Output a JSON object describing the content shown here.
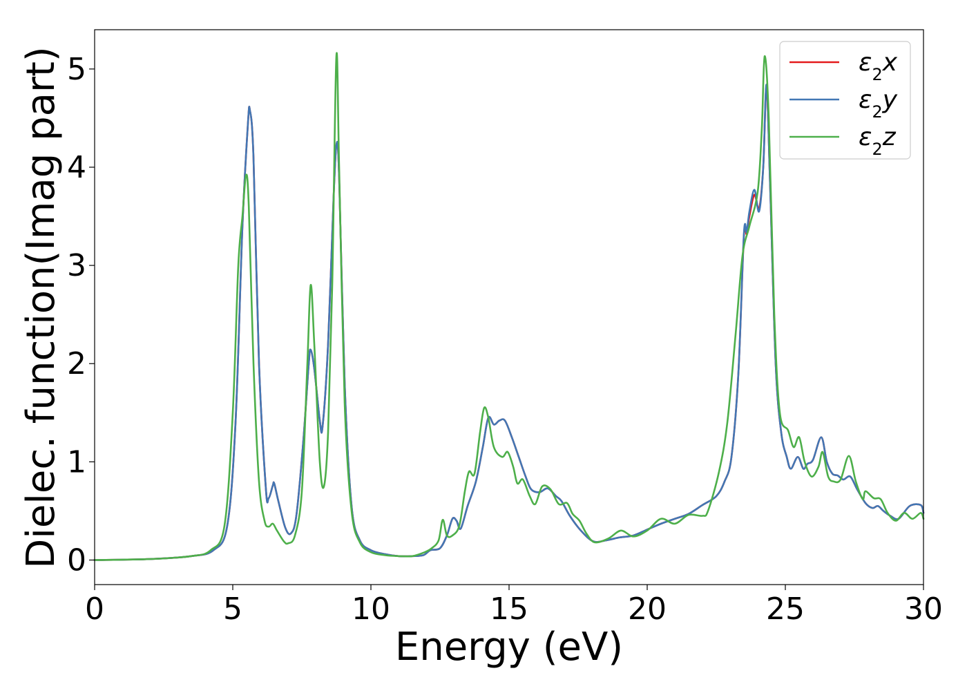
{
  "chart_data": {
    "type": "line",
    "xlabel": "Energy (eV)",
    "ylabel": "Dielec. function(Imag part)",
    "xlim": [
      0,
      30
    ],
    "ylim": [
      -0.25,
      5.4
    ],
    "xticks": [
      0,
      5,
      10,
      15,
      20,
      25,
      30
    ],
    "yticks": [
      0,
      1,
      2,
      3,
      4,
      5
    ],
    "grid": false,
    "legend_position": "top-right",
    "series": [
      {
        "name": "ε₂x",
        "legend_main": "ε",
        "legend_sub": "2",
        "legend_var": "x",
        "color": "#e41a1c",
        "points": [
          [
            0,
            0
          ],
          [
            2,
            0.01
          ],
          [
            3.5,
            0.04
          ],
          [
            4.3,
            0.1
          ],
          [
            4.8,
            0.35
          ],
          [
            5.1,
            1.4
          ],
          [
            5.35,
            3.4
          ],
          [
            5.55,
            4.45
          ],
          [
            5.62,
            4.58
          ],
          [
            5.75,
            4.1
          ],
          [
            5.95,
            2.0
          ],
          [
            6.2,
            0.72
          ],
          [
            6.3,
            0.63
          ],
          [
            6.45,
            0.76
          ],
          [
            6.5,
            0.78
          ],
          [
            6.65,
            0.6
          ],
          [
            6.9,
            0.33
          ],
          [
            7.1,
            0.27
          ],
          [
            7.3,
            0.45
          ],
          [
            7.55,
            1.2
          ],
          [
            7.75,
            2.0
          ],
          [
            7.82,
            2.14
          ],
          [
            7.95,
            1.95
          ],
          [
            8.15,
            1.42
          ],
          [
            8.25,
            1.36
          ],
          [
            8.45,
            2.2
          ],
          [
            8.65,
            3.7
          ],
          [
            8.76,
            4.24
          ],
          [
            8.85,
            3.9
          ],
          [
            9.05,
            1.8
          ],
          [
            9.3,
            0.55
          ],
          [
            9.6,
            0.2
          ],
          [
            10,
            0.1
          ],
          [
            10.5,
            0.06
          ],
          [
            11,
            0.04
          ],
          [
            11.5,
            0.04
          ],
          [
            11.9,
            0.05
          ],
          [
            12.15,
            0.1
          ],
          [
            12.5,
            0.12
          ],
          [
            12.75,
            0.25
          ],
          [
            12.95,
            0.42
          ],
          [
            13.1,
            0.4
          ],
          [
            13.25,
            0.32
          ],
          [
            13.5,
            0.55
          ],
          [
            13.8,
            0.8
          ],
          [
            14.05,
            1.15
          ],
          [
            14.25,
            1.45
          ],
          [
            14.45,
            1.38
          ],
          [
            14.65,
            1.42
          ],
          [
            14.85,
            1.42
          ],
          [
            15.1,
            1.25
          ],
          [
            15.35,
            1.05
          ],
          [
            15.6,
            0.85
          ],
          [
            15.8,
            0.72
          ],
          [
            16.1,
            0.69
          ],
          [
            16.4,
            0.73
          ],
          [
            16.7,
            0.65
          ],
          [
            16.9,
            0.6
          ],
          [
            17.2,
            0.45
          ],
          [
            17.6,
            0.3
          ],
          [
            18.05,
            0.19
          ],
          [
            18.5,
            0.2
          ],
          [
            19,
            0.23
          ],
          [
            19.5,
            0.25
          ],
          [
            20,
            0.31
          ],
          [
            20.5,
            0.37
          ],
          [
            21,
            0.42
          ],
          [
            21.5,
            0.47
          ],
          [
            22,
            0.56
          ],
          [
            22.5,
            0.65
          ],
          [
            22.8,
            0.8
          ],
          [
            23.05,
            1.05
          ],
          [
            23.3,
            1.9
          ],
          [
            23.5,
            3.3
          ],
          [
            23.6,
            3.32
          ],
          [
            23.7,
            3.5
          ],
          [
            23.88,
            3.72
          ],
          [
            24.05,
            3.58
          ],
          [
            24.2,
            4.0
          ],
          [
            24.32,
            4.82
          ],
          [
            24.45,
            3.8
          ],
          [
            24.65,
            2.0
          ],
          [
            24.85,
            1.3
          ],
          [
            25.05,
            1.05
          ],
          [
            25.2,
            0.93
          ],
          [
            25.45,
            1.05
          ],
          [
            25.65,
            0.93
          ],
          [
            25.8,
            0.98
          ],
          [
            26.0,
            1.02
          ],
          [
            26.3,
            1.25
          ],
          [
            26.5,
            1.0
          ],
          [
            26.7,
            0.88
          ],
          [
            26.9,
            0.86
          ],
          [
            27.1,
            0.82
          ],
          [
            27.35,
            0.85
          ],
          [
            27.6,
            0.72
          ],
          [
            27.9,
            0.58
          ],
          [
            28.15,
            0.53
          ],
          [
            28.35,
            0.55
          ],
          [
            28.55,
            0.5
          ],
          [
            28.8,
            0.45
          ],
          [
            29.1,
            0.42
          ],
          [
            29.5,
            0.55
          ],
          [
            29.9,
            0.56
          ],
          [
            30,
            0.48
          ]
        ]
      },
      {
        "name": "ε₂y",
        "legend_main": "ε",
        "legend_sub": "2",
        "legend_var": "y",
        "color": "#4277b4",
        "points": [
          [
            0,
            0
          ],
          [
            2,
            0.01
          ],
          [
            3.5,
            0.04
          ],
          [
            4.3,
            0.1
          ],
          [
            4.8,
            0.35
          ],
          [
            5.1,
            1.4
          ],
          [
            5.35,
            3.4
          ],
          [
            5.55,
            4.45
          ],
          [
            5.62,
            4.58
          ],
          [
            5.75,
            4.1
          ],
          [
            5.95,
            2.0
          ],
          [
            6.2,
            0.72
          ],
          [
            6.3,
            0.63
          ],
          [
            6.45,
            0.76
          ],
          [
            6.5,
            0.78
          ],
          [
            6.65,
            0.6
          ],
          [
            6.9,
            0.33
          ],
          [
            7.1,
            0.27
          ],
          [
            7.3,
            0.45
          ],
          [
            7.55,
            1.2
          ],
          [
            7.75,
            2.0
          ],
          [
            7.82,
            2.14
          ],
          [
            7.95,
            1.95
          ],
          [
            8.15,
            1.42
          ],
          [
            8.25,
            1.36
          ],
          [
            8.45,
            2.2
          ],
          [
            8.65,
            3.7
          ],
          [
            8.76,
            4.24
          ],
          [
            8.85,
            3.9
          ],
          [
            9.05,
            1.8
          ],
          [
            9.3,
            0.55
          ],
          [
            9.6,
            0.2
          ],
          [
            10,
            0.1
          ],
          [
            10.5,
            0.06
          ],
          [
            11,
            0.04
          ],
          [
            11.5,
            0.04
          ],
          [
            11.9,
            0.05
          ],
          [
            12.15,
            0.1
          ],
          [
            12.5,
            0.12
          ],
          [
            12.75,
            0.25
          ],
          [
            12.95,
            0.42
          ],
          [
            13.1,
            0.4
          ],
          [
            13.25,
            0.32
          ],
          [
            13.5,
            0.55
          ],
          [
            13.8,
            0.8
          ],
          [
            14.05,
            1.15
          ],
          [
            14.25,
            1.45
          ],
          [
            14.45,
            1.38
          ],
          [
            14.65,
            1.42
          ],
          [
            14.85,
            1.42
          ],
          [
            15.1,
            1.25
          ],
          [
            15.35,
            1.05
          ],
          [
            15.6,
            0.85
          ],
          [
            15.8,
            0.72
          ],
          [
            16.1,
            0.69
          ],
          [
            16.4,
            0.73
          ],
          [
            16.7,
            0.65
          ],
          [
            16.9,
            0.6
          ],
          [
            17.2,
            0.45
          ],
          [
            17.6,
            0.3
          ],
          [
            18.05,
            0.19
          ],
          [
            18.5,
            0.2
          ],
          [
            19,
            0.23
          ],
          [
            19.5,
            0.25
          ],
          [
            20,
            0.31
          ],
          [
            20.5,
            0.37
          ],
          [
            21,
            0.42
          ],
          [
            21.5,
            0.47
          ],
          [
            22,
            0.56
          ],
          [
            22.5,
            0.65
          ],
          [
            22.8,
            0.8
          ],
          [
            23.05,
            1.05
          ],
          [
            23.3,
            1.9
          ],
          [
            23.5,
            3.32
          ],
          [
            23.6,
            3.34
          ],
          [
            23.7,
            3.55
          ],
          [
            23.88,
            3.77
          ],
          [
            24.05,
            3.55
          ],
          [
            24.2,
            4.0
          ],
          [
            24.32,
            4.84
          ],
          [
            24.45,
            3.8
          ],
          [
            24.65,
            2.0
          ],
          [
            24.85,
            1.3
          ],
          [
            25.05,
            1.05
          ],
          [
            25.2,
            0.93
          ],
          [
            25.45,
            1.05
          ],
          [
            25.65,
            0.93
          ],
          [
            25.8,
            0.98
          ],
          [
            26.0,
            1.02
          ],
          [
            26.3,
            1.25
          ],
          [
            26.5,
            1.0
          ],
          [
            26.7,
            0.88
          ],
          [
            26.9,
            0.86
          ],
          [
            27.1,
            0.82
          ],
          [
            27.35,
            0.85
          ],
          [
            27.6,
            0.72
          ],
          [
            27.9,
            0.58
          ],
          [
            28.15,
            0.53
          ],
          [
            28.35,
            0.55
          ],
          [
            28.55,
            0.5
          ],
          [
            28.8,
            0.45
          ],
          [
            29.1,
            0.42
          ],
          [
            29.5,
            0.55
          ],
          [
            29.9,
            0.56
          ],
          [
            30,
            0.48
          ]
        ]
      },
      {
        "name": "ε₂z",
        "legend_main": "ε",
        "legend_sub": "2",
        "legend_var": "z",
        "color": "#4daf4a",
        "points": [
          [
            0,
            0
          ],
          [
            2,
            0.01
          ],
          [
            3.5,
            0.04
          ],
          [
            4.2,
            0.1
          ],
          [
            4.7,
            0.35
          ],
          [
            5.0,
            1.5
          ],
          [
            5.2,
            3.0
          ],
          [
            5.35,
            3.5
          ],
          [
            5.48,
            3.92
          ],
          [
            5.58,
            3.6
          ],
          [
            5.75,
            2.0
          ],
          [
            5.95,
            0.8
          ],
          [
            6.15,
            0.4
          ],
          [
            6.3,
            0.34
          ],
          [
            6.45,
            0.37
          ],
          [
            6.6,
            0.3
          ],
          [
            6.85,
            0.19
          ],
          [
            7.0,
            0.17
          ],
          [
            7.25,
            0.25
          ],
          [
            7.5,
            0.7
          ],
          [
            7.7,
            2.0
          ],
          [
            7.82,
            2.8
          ],
          [
            7.95,
            2.2
          ],
          [
            8.15,
            1.0
          ],
          [
            8.3,
            0.75
          ],
          [
            8.45,
            1.3
          ],
          [
            8.6,
            2.8
          ],
          [
            8.75,
            5.13
          ],
          [
            8.85,
            4.0
          ],
          [
            9.05,
            1.6
          ],
          [
            9.3,
            0.5
          ],
          [
            9.6,
            0.18
          ],
          [
            10,
            0.08
          ],
          [
            10.5,
            0.05
          ],
          [
            11,
            0.04
          ],
          [
            11.5,
            0.04
          ],
          [
            11.95,
            0.08
          ],
          [
            12.2,
            0.12
          ],
          [
            12.45,
            0.2
          ],
          [
            12.6,
            0.41
          ],
          [
            12.75,
            0.25
          ],
          [
            12.95,
            0.25
          ],
          [
            13.2,
            0.35
          ],
          [
            13.4,
            0.7
          ],
          [
            13.55,
            0.9
          ],
          [
            13.75,
            0.88
          ],
          [
            13.95,
            1.3
          ],
          [
            14.1,
            1.55
          ],
          [
            14.25,
            1.45
          ],
          [
            14.45,
            1.15
          ],
          [
            14.75,
            1.05
          ],
          [
            14.95,
            1.1
          ],
          [
            15.15,
            0.95
          ],
          [
            15.3,
            0.78
          ],
          [
            15.5,
            0.82
          ],
          [
            15.75,
            0.65
          ],
          [
            15.95,
            0.57
          ],
          [
            16.2,
            0.75
          ],
          [
            16.5,
            0.72
          ],
          [
            16.8,
            0.57
          ],
          [
            17.1,
            0.58
          ],
          [
            17.3,
            0.47
          ],
          [
            17.55,
            0.4
          ],
          [
            17.8,
            0.27
          ],
          [
            18.1,
            0.18
          ],
          [
            18.6,
            0.22
          ],
          [
            19.05,
            0.3
          ],
          [
            19.5,
            0.24
          ],
          [
            20,
            0.3
          ],
          [
            20.5,
            0.42
          ],
          [
            21,
            0.37
          ],
          [
            21.5,
            0.46
          ],
          [
            22,
            0.45
          ],
          [
            22.2,
            0.5
          ],
          [
            22.6,
            0.9
          ],
          [
            22.9,
            1.4
          ],
          [
            23.2,
            2.3
          ],
          [
            23.45,
            3.1
          ],
          [
            23.7,
            3.4
          ],
          [
            24.0,
            3.75
          ],
          [
            24.15,
            4.4
          ],
          [
            24.25,
            5.13
          ],
          [
            24.4,
            4.5
          ],
          [
            24.6,
            2.5
          ],
          [
            24.8,
            1.5
          ],
          [
            25.1,
            1.32
          ],
          [
            25.3,
            1.15
          ],
          [
            25.5,
            1.25
          ],
          [
            25.7,
            1.0
          ],
          [
            25.95,
            0.85
          ],
          [
            26.2,
            0.95
          ],
          [
            26.35,
            1.1
          ],
          [
            26.55,
            0.85
          ],
          [
            26.75,
            0.8
          ],
          [
            27.0,
            0.82
          ],
          [
            27.3,
            1.06
          ],
          [
            27.55,
            0.8
          ],
          [
            27.8,
            0.62
          ],
          [
            27.9,
            0.7
          ],
          [
            28.2,
            0.63
          ],
          [
            28.45,
            0.62
          ],
          [
            28.7,
            0.48
          ],
          [
            29.0,
            0.4
          ],
          [
            29.3,
            0.48
          ],
          [
            29.6,
            0.42
          ],
          [
            29.9,
            0.48
          ],
          [
            30,
            0.42
          ]
        ]
      }
    ]
  }
}
